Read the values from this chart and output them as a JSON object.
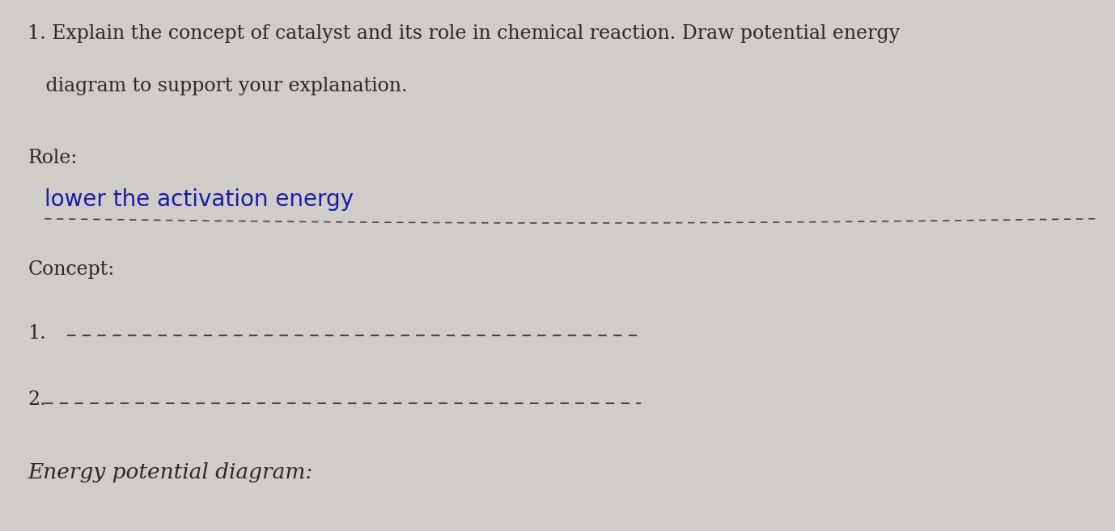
{
  "background_color": "#d0cdc8",
  "title_line1": "1. Explain the concept of catalyst and its role in chemical reaction. Draw potential energy",
  "title_line2": "   diagram to support your explanation.",
  "role_label": "Role:",
  "role_handwritten": "lower the activation energy",
  "concept_label": "Concept:",
  "item1_label": "1.",
  "item2_label": "2.",
  "energy_label": "Energy potential diagram:",
  "text_color": "#2a2828",
  "handwritten_color": "#1a1aaa",
  "dash_color": "#444444",
  "title_fontsize": 17,
  "label_fontsize": 17,
  "handwritten_fontsize": 20,
  "energy_fontsize": 19
}
